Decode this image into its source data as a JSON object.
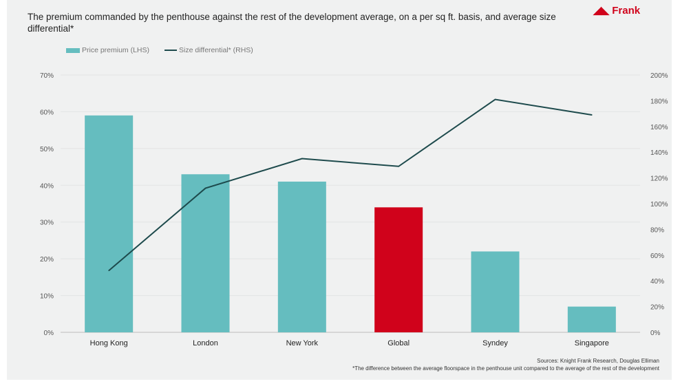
{
  "brand": {
    "logo_text": "Frank",
    "logo_color": "#d0021b"
  },
  "chart_data": {
    "type": "bar",
    "title": "The premium commanded by the penthouse against the rest of the development average, on a per sq ft. basis, and average size differential*",
    "categories": [
      "Hong Kong",
      "London",
      "New York",
      "Global",
      "Syndey",
      "Singapore"
    ],
    "series": [
      {
        "name": "Price premium (LHS)",
        "type": "bar",
        "axis": "left",
        "values": [
          59,
          43,
          41,
          34,
          22,
          7
        ],
        "color": "#65bdbf",
        "highlight": {
          "Global": "#d0021b"
        }
      },
      {
        "name": "Size differential* (RHS)",
        "type": "line",
        "axis": "right",
        "values": [
          48,
          112,
          135,
          129,
          181,
          169
        ],
        "color": "#1d4a4c"
      }
    ],
    "left_axis": {
      "ylim": [
        0,
        70
      ],
      "ticks": [
        "0%",
        "10%",
        "20%",
        "30%",
        "40%",
        "50%",
        "60%",
        "70%"
      ]
    },
    "right_axis": {
      "ylim": [
        0,
        200
      ],
      "ticks": [
        "0%",
        "20%",
        "40%",
        "60%",
        "80%",
        "100%",
        "120%",
        "140%",
        "160%",
        "180%",
        "200%"
      ]
    },
    "grid": true,
    "legend_position": "top-left"
  },
  "footer": {
    "sources": "Sources: Knight Frank Research, Douglas Elliman",
    "footnote": "*The difference between the average floorspace in the penthouse unit compared to the average of the rest of the development"
  }
}
